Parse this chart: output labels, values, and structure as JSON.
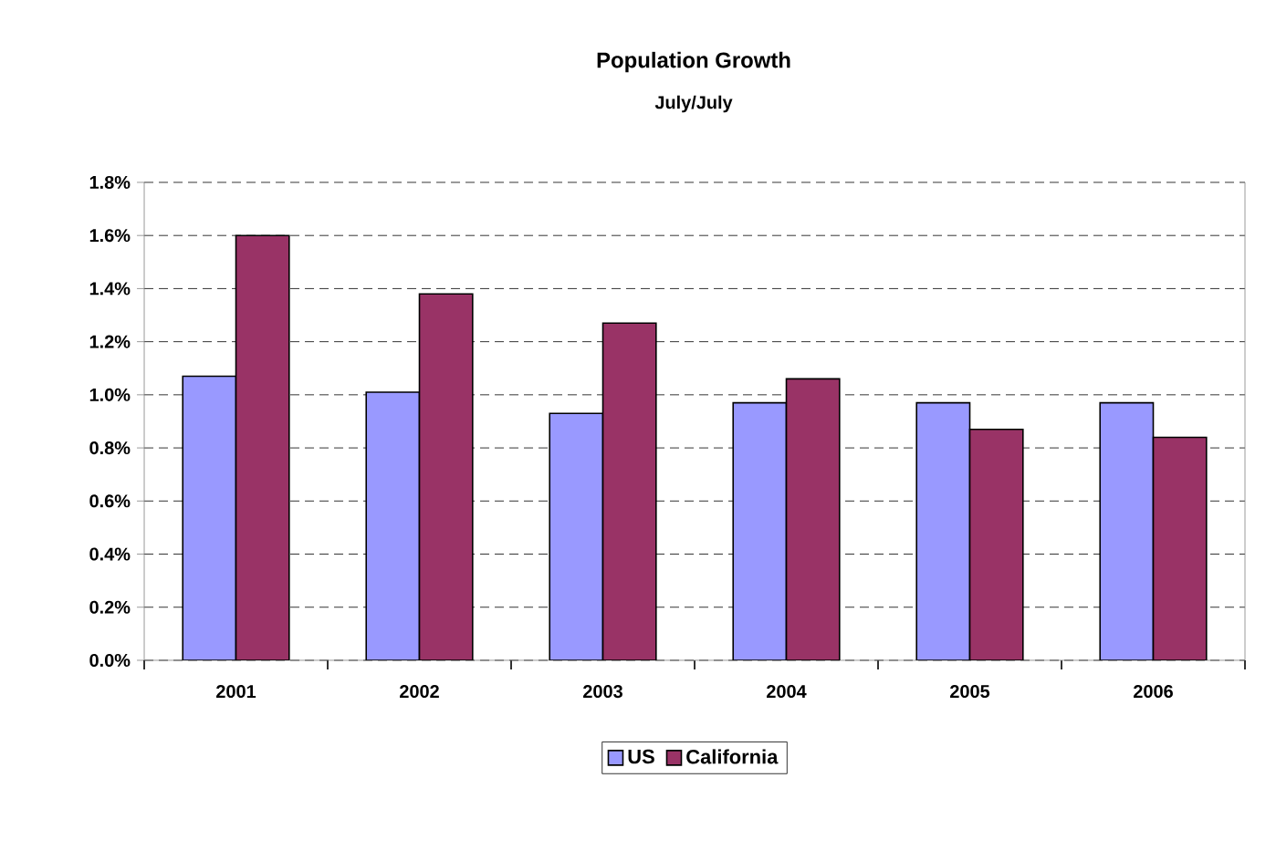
{
  "chart_data": {
    "type": "bar",
    "title": "Population Growth",
    "subtitle": "July/July",
    "categories": [
      "2001",
      "2002",
      "2003",
      "2004",
      "2005",
      "2006"
    ],
    "series": [
      {
        "name": "US",
        "color": "#9999ff",
        "values": [
          1.07,
          1.01,
          0.93,
          0.97,
          0.97,
          0.97
        ]
      },
      {
        "name": "California",
        "color": "#993366",
        "values": [
          1.6,
          1.38,
          1.27,
          1.06,
          0.87,
          0.84
        ]
      }
    ],
    "ylim": [
      0,
      1.8
    ],
    "yticks": [
      {
        "value": 0,
        "label": "0.0%"
      },
      {
        "value": 0.2,
        "label": "0.2%"
      },
      {
        "value": 0.4,
        "label": "0.4%"
      },
      {
        "value": 0.6,
        "label": "0.6%"
      },
      {
        "value": 0.8,
        "label": "0.8%"
      },
      {
        "value": 1.0,
        "label": "1.0%"
      },
      {
        "value": 1.2,
        "label": "1.2%"
      },
      {
        "value": 1.4,
        "label": "1.4%"
      },
      {
        "value": 1.6,
        "label": "1.6%"
      },
      {
        "value": 1.8,
        "label": "1.8%"
      }
    ],
    "grid": "y",
    "legend": "bottom"
  }
}
